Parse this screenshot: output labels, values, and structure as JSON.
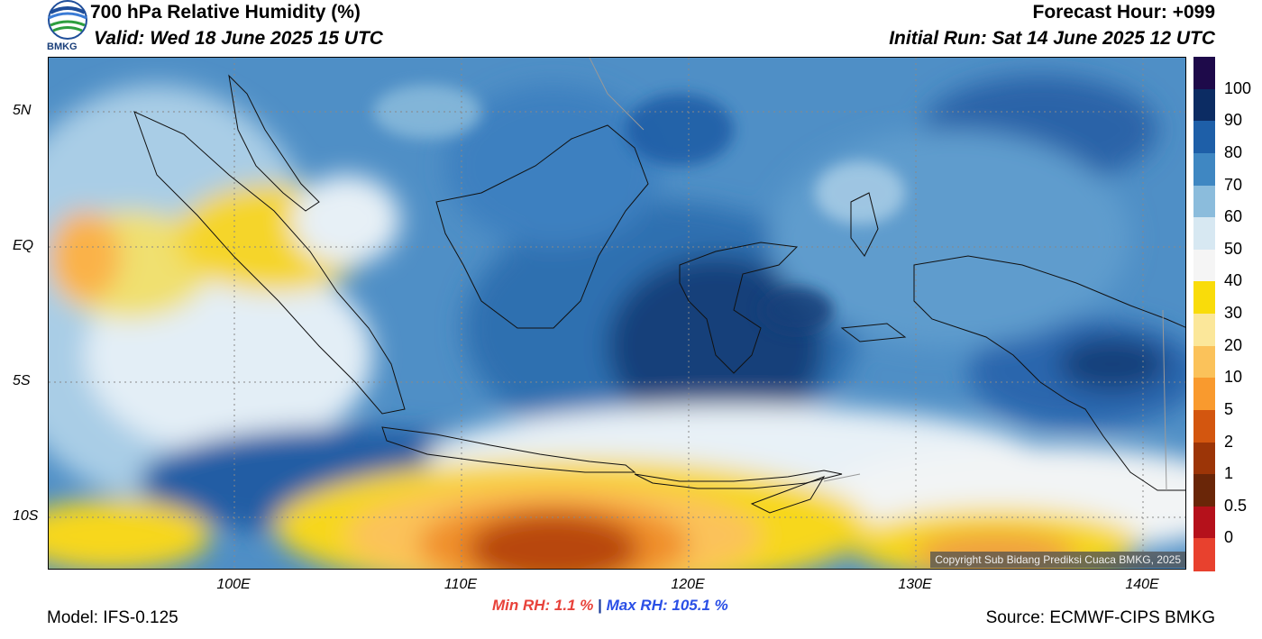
{
  "header": {
    "title": "700 hPa Relative Humidity (%)",
    "valid": "Valid: Wed 18 June 2025 15 UTC",
    "forecast_hour": "Forecast Hour: +099",
    "initial_run": "Initial Run: Sat 14 June 2025 12 UTC",
    "logo_text": "BMKG"
  },
  "axes": {
    "latitudes": [
      "5N",
      "EQ",
      "5S",
      "10S"
    ],
    "longitudes": [
      "100E",
      "110E",
      "120E",
      "130E",
      "140E"
    ]
  },
  "colorbar": {
    "labels": [
      "100",
      "90",
      "80",
      "70",
      "60",
      "50",
      "40",
      "30",
      "20",
      "10",
      "5",
      "2",
      "1",
      "0.5",
      "0"
    ],
    "colors": [
      "#1e0a4a",
      "#0c2c63",
      "#1e5fa8",
      "#3f87c2",
      "#8bbcdc",
      "#d7e8f2",
      "#f5f5f5",
      "#f9dc0a",
      "#fbe79a",
      "#fbc25a",
      "#f99a2e",
      "#d3560f",
      "#9c3507",
      "#6a2608",
      "#b5111b",
      "#e8412e"
    ]
  },
  "stats": {
    "min_rh": "Min RH:   1.1 %",
    "separator": "|",
    "max_rh": "Max RH: 105.1 %"
  },
  "footer": {
    "model": "Model: IFS-0.125",
    "source": "Source: ECMWF-CIPS BMKG",
    "copyright": "Copyright Sub Bidang Prediksi Cuaca BMKG, 2025"
  }
}
